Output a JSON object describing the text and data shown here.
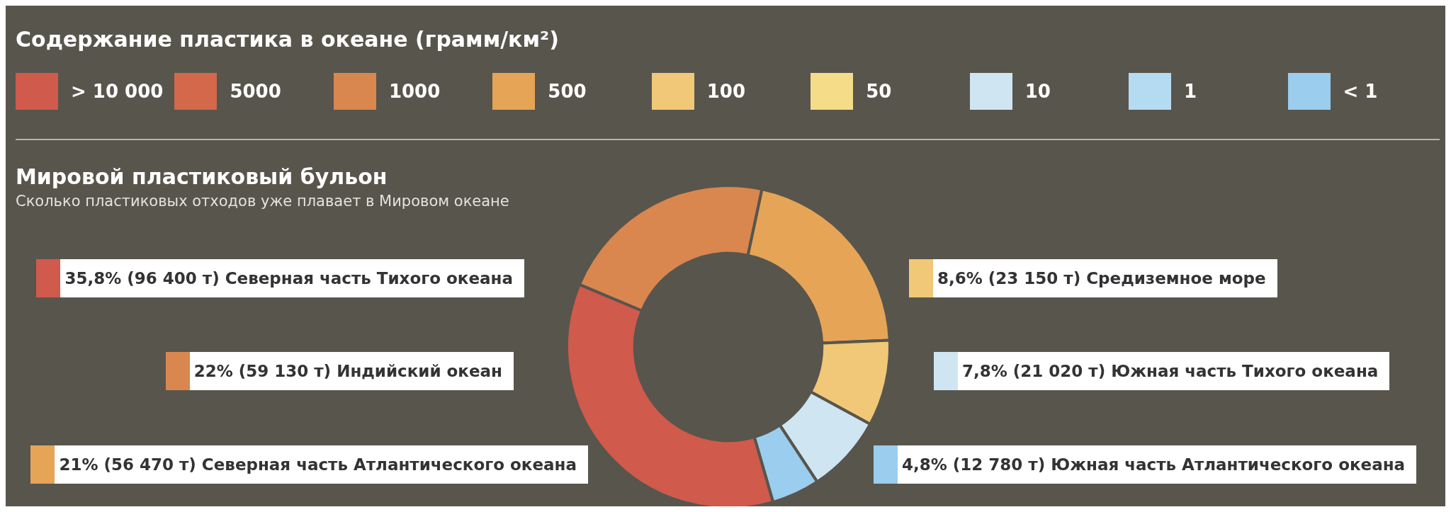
{
  "chart_data": [
    {
      "type": "other",
      "title": "Содержание пластика в океане (грамм/км²)",
      "categories": [
        "> 10 000",
        "5000",
        "1000",
        "500",
        "100",
        "50",
        "10",
        "1",
        "< 1"
      ],
      "colors": [
        "#d05a4c",
        "#d3684a",
        "#d9874e",
        "#e6a457",
        "#f0c877",
        "#f5dc88",
        "#cfe5f2",
        "#b5dbf2",
        "#9acdee"
      ]
    },
    {
      "type": "donut",
      "title": "Мировой пластиковый бульон",
      "subtitle": "Сколько пластиковых отходов уже плавает в Мировом океане",
      "categories": [
        "Северная часть Атлантического океана",
        "Средиземное море",
        "Южная часть Тихого океана",
        "Южная часть Атлантического океана",
        "Северная часть Тихого океана",
        "Индийский океан"
      ],
      "values": [
        21,
        8.6,
        7.8,
        4.8,
        35.8,
        22
      ],
      "legend": "right",
      "colors": [
        "#e6a457",
        "#f0c877",
        "#cfe5f2",
        "#9acdee",
        "#d05a4c",
        "#d9874e"
      ],
      "value_labels": [
        "21% (56 470 т)",
        "8,6% (23 150 т)",
        "7,8% (21 020 т)",
        "4,8% (12 780 т)",
        "35,8% (96 400 т)",
        "22% (59 130 т)"
      ]
    }
  ]
}
